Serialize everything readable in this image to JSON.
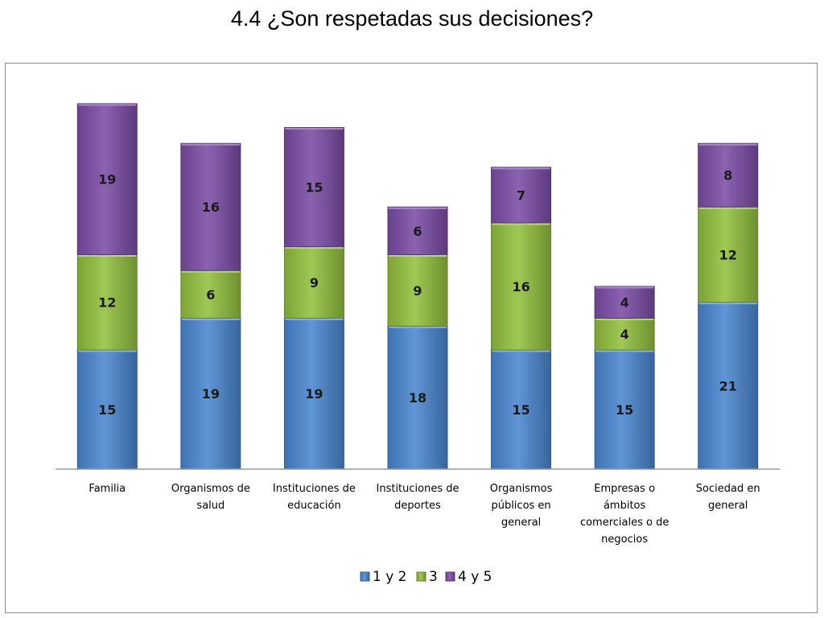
{
  "page": {
    "title": "4.4  ¿Son respetadas sus decisiones?"
  },
  "chart_data": {
    "type": "bar",
    "stacked": true,
    "title": "",
    "xlabel": "",
    "ylabel": "",
    "ylim": [
      0,
      47
    ],
    "grid": false,
    "legend_position": "bottom",
    "categories": [
      [
        "Familia"
      ],
      [
        "Organismos de",
        "salud"
      ],
      [
        "Instituciones de",
        "educación"
      ],
      [
        "Instituciones de",
        "deportes"
      ],
      [
        "Organismos",
        "públicos en",
        "general"
      ],
      [
        "Empresas o",
        "ámbitos",
        "comerciales o de",
        "negocios"
      ],
      [
        "Sociedad en",
        "general"
      ]
    ],
    "series": [
      {
        "name": "1 y 2",
        "color": "#4a86d0",
        "values": [
          15,
          19,
          19,
          18,
          15,
          15,
          21
        ]
      },
      {
        "name": "3",
        "color": "#92c03e",
        "values": [
          12,
          6,
          9,
          9,
          16,
          4,
          12
        ]
      },
      {
        "name": "4 y 5",
        "color": "#7c4da6",
        "values": [
          19,
          16,
          15,
          6,
          7,
          4,
          8
        ]
      }
    ]
  }
}
